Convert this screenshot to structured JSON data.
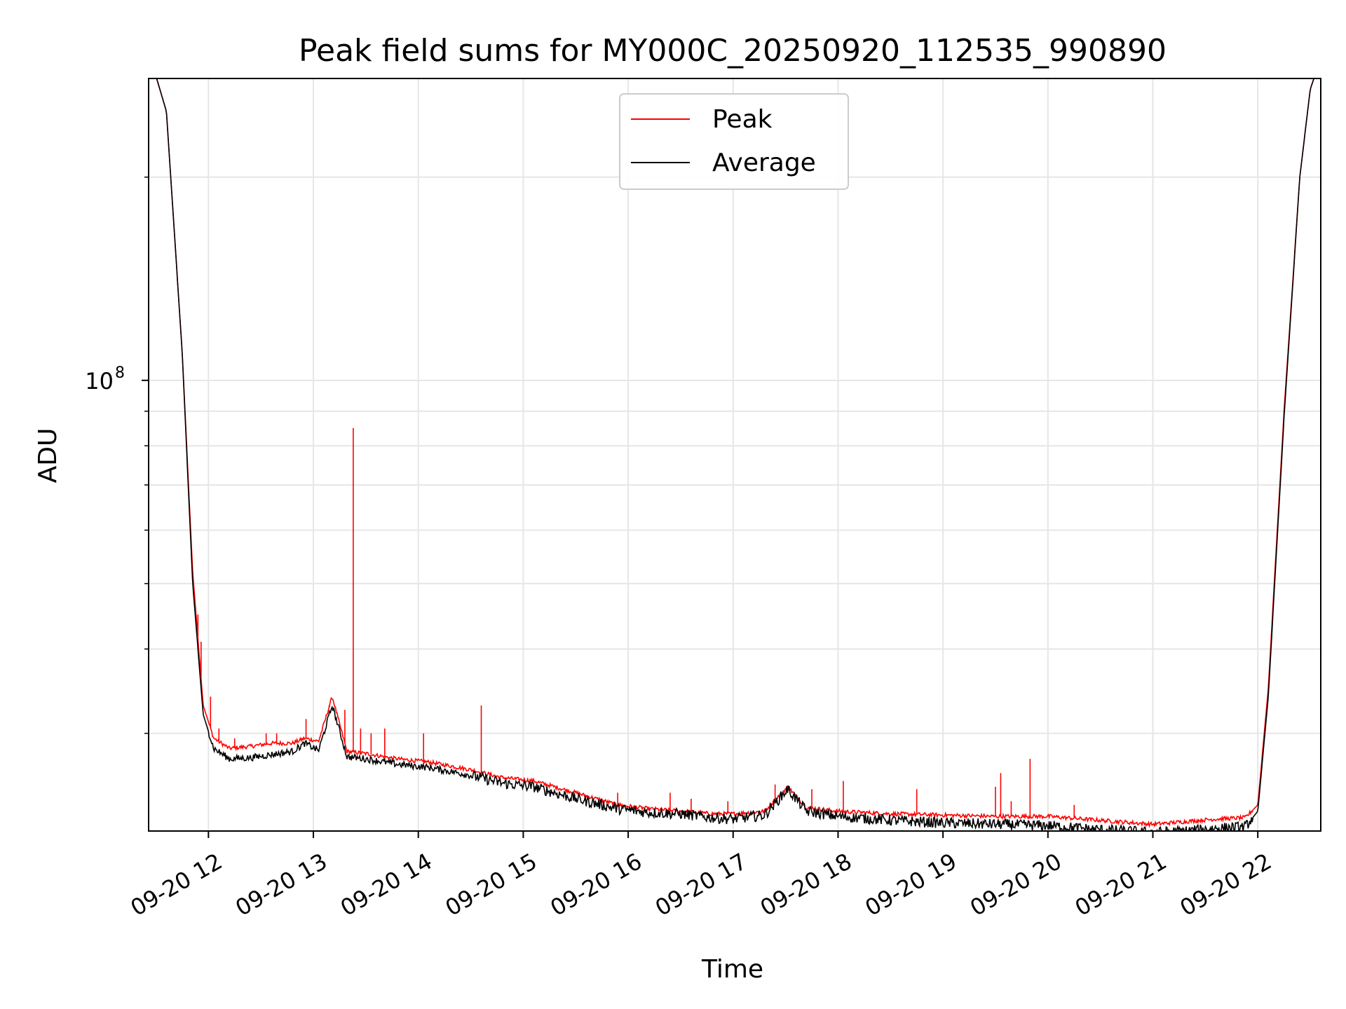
{
  "chart_data": {
    "type": "line",
    "title": "Peak field sums for MY000C_20250920_112535_990890",
    "xlabel": "Time",
    "ylabel": "ADU",
    "yscale": "log",
    "x_range_hours": [
      11.43,
      22.6
    ],
    "ylim": [
      21500000,
      280000000
    ],
    "x_ticks": [
      {
        "hour": 12,
        "label": "09-20 12"
      },
      {
        "hour": 13,
        "label": "09-20 13"
      },
      {
        "hour": 14,
        "label": "09-20 14"
      },
      {
        "hour": 15,
        "label": "09-20 15"
      },
      {
        "hour": 16,
        "label": "09-20 16"
      },
      {
        "hour": 17,
        "label": "09-20 17"
      },
      {
        "hour": 18,
        "label": "09-20 18"
      },
      {
        "hour": 19,
        "label": "09-20 19"
      },
      {
        "hour": 20,
        "label": "09-20 20"
      },
      {
        "hour": 21,
        "label": "09-20 21"
      },
      {
        "hour": 22,
        "label": "09-20 22"
      }
    ],
    "y_major_ticks": [
      {
        "value": 100000000,
        "label": "10",
        "exp": "8"
      }
    ],
    "y_minor_ticks": [
      30000000,
      40000000,
      50000000,
      60000000,
      70000000,
      80000000,
      90000000,
      200000000
    ],
    "grid": true,
    "legend_position": "upper-center",
    "series": [
      {
        "name": "Peak",
        "color": "#ff0000",
        "x": [
          11.45,
          11.6,
          11.75,
          11.85,
          11.95,
          12.05,
          12.2,
          12.4,
          12.6,
          12.8,
          12.92,
          13.05,
          13.18,
          13.32,
          13.5,
          13.8,
          14.1,
          14.5,
          14.8,
          15.1,
          15.5,
          15.9,
          16.2,
          16.5,
          16.8,
          17.0,
          17.3,
          17.52,
          17.7,
          18.0,
          18.5,
          19.0,
          19.5,
          20.0,
          20.5,
          21.0,
          21.3,
          21.6,
          21.88,
          22.0,
          22.1,
          22.25,
          22.4,
          22.5,
          22.6
        ],
        "y": [
          300000000,
          250000000,
          110000000,
          52000000,
          33000000,
          29500000,
          28500000,
          28700000,
          29000000,
          29000000,
          29500000,
          29200000,
          34000000,
          28200000,
          28000000,
          27500000,
          27200000,
          26500000,
          25800000,
          25500000,
          24500000,
          23500000,
          23200000,
          23000000,
          22800000,
          22800000,
          23000000,
          25000000,
          23300000,
          23000000,
          22800000,
          22700000,
          22600000,
          22600000,
          22300000,
          22000000,
          22200000,
          22400000,
          22500000,
          23500000,
          35000000,
          90000000,
          200000000,
          270000000,
          300000000
        ]
      },
      {
        "name": "Average",
        "color": "#000000",
        "x": [
          11.45,
          11.6,
          11.75,
          11.85,
          11.95,
          12.05,
          12.2,
          12.4,
          12.6,
          12.8,
          12.92,
          13.05,
          13.18,
          13.32,
          13.5,
          13.8,
          14.1,
          14.5,
          14.8,
          15.1,
          15.5,
          15.9,
          16.2,
          16.5,
          16.8,
          17.0,
          17.3,
          17.52,
          17.7,
          18.0,
          18.5,
          19.0,
          19.5,
          20.0,
          20.5,
          21.0,
          21.3,
          21.6,
          21.88,
          22.0,
          22.1,
          22.25,
          22.4,
          22.5,
          22.6
        ],
        "y": [
          300000000,
          250000000,
          110000000,
          50000000,
          32000000,
          28500000,
          27500000,
          27600000,
          27900000,
          28200000,
          29000000,
          28300000,
          33000000,
          27700000,
          27500000,
          27000000,
          26700000,
          26000000,
          25300000,
          25000000,
          24000000,
          23200000,
          22900000,
          22800000,
          22500000,
          22400000,
          22700000,
          24800000,
          23000000,
          22600000,
          22300000,
          22100000,
          22000000,
          21900000,
          21600000,
          21400000,
          21500000,
          21700000,
          21800000,
          23000000,
          34000000,
          88000000,
          200000000,
          270000000,
          300000000
        ]
      }
    ],
    "peak_spikes": [
      {
        "hour": 11.9,
        "value": 45000000
      },
      {
        "hour": 11.93,
        "value": 41000000
      },
      {
        "hour": 12.02,
        "value": 34000000
      },
      {
        "hour": 12.1,
        "value": 30500000
      },
      {
        "hour": 12.25,
        "value": 29500000
      },
      {
        "hour": 12.55,
        "value": 30000000
      },
      {
        "hour": 12.65,
        "value": 30000000
      },
      {
        "hour": 12.93,
        "value": 31500000
      },
      {
        "hour": 13.15,
        "value": 33000000
      },
      {
        "hour": 13.3,
        "value": 32500000
      },
      {
        "hour": 13.38,
        "value": 85000000
      },
      {
        "hour": 13.45,
        "value": 30500000
      },
      {
        "hour": 13.55,
        "value": 30000000
      },
      {
        "hour": 13.68,
        "value": 30500000
      },
      {
        "hour": 14.05,
        "value": 30000000
      },
      {
        "hour": 14.6,
        "value": 33000000
      },
      {
        "hour": 15.9,
        "value": 24500000
      },
      {
        "hour": 16.4,
        "value": 24500000
      },
      {
        "hour": 16.6,
        "value": 24000000
      },
      {
        "hour": 16.95,
        "value": 23800000
      },
      {
        "hour": 17.4,
        "value": 25200000
      },
      {
        "hour": 17.75,
        "value": 24800000
      },
      {
        "hour": 18.05,
        "value": 25500000
      },
      {
        "hour": 18.75,
        "value": 24800000
      },
      {
        "hour": 19.5,
        "value": 25000000
      },
      {
        "hour": 19.55,
        "value": 26200000
      },
      {
        "hour": 19.65,
        "value": 23800000
      },
      {
        "hour": 19.83,
        "value": 27500000
      },
      {
        "hour": 20.25,
        "value": 23500000
      }
    ]
  }
}
